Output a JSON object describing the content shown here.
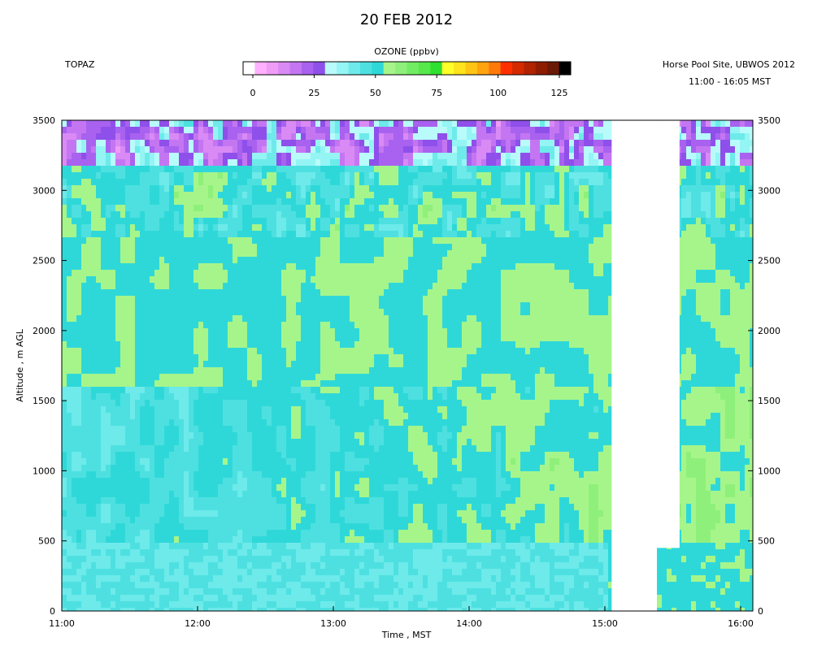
{
  "chart_data": {
    "type": "heatmap",
    "title": "20 FEB 2012",
    "instrument_label": "TOPAZ",
    "site_label": "Horse Pool Site, UBWOS 2012",
    "time_range_label": "11:00 - 16:05 MST",
    "colorbar": {
      "label": "OZONE (ppbv)",
      "range": [
        0,
        125
      ],
      "ticks": [
        0,
        25,
        50,
        75,
        100,
        125
      ],
      "colors": [
        "#ffffff",
        "#ffb0ff",
        "#ef9cf7",
        "#d98af5",
        "#c476f2",
        "#a862ef",
        "#8f4fea",
        "#b9fbfb",
        "#95f4f4",
        "#6eeaea",
        "#4ee0e0",
        "#2fd8d8",
        "#a6f58a",
        "#8ef07a",
        "#72ec62",
        "#57e84a",
        "#2fe02f",
        "#ffff2a",
        "#ffe31c",
        "#ffc515",
        "#ffa40f",
        "#ff7a0a",
        "#ff3000",
        "#d42a00",
        "#b02200",
        "#8e1c00",
        "#6c1a08",
        "#000000"
      ]
    },
    "x": {
      "label": "Time , MST",
      "range": [
        "11:00",
        "16:05"
      ],
      "ticks": [
        "11:00",
        "12:00",
        "13:00",
        "14:00",
        "15:00",
        "16:00"
      ]
    },
    "y": {
      "label": "Altitude , m AGL",
      "range": [
        0,
        3500
      ],
      "ticks": [
        0,
        500,
        1000,
        1500,
        2000,
        2500,
        3000,
        3500
      ]
    },
    "data_gaps": [
      {
        "from": "15:03",
        "to": "15:23",
        "altitude_range": [
          0,
          3500
        ]
      },
      {
        "from": "15:23",
        "to": "15:33",
        "altitude_range": [
          450,
          3500
        ]
      }
    ],
    "profile": [
      {
        "altitude_range": [
          0,
          500
        ],
        "ozone_ppbv": [
          35,
          55
        ],
        "note": "boundary layer, mostly 25-50 band with light-green streaks"
      },
      {
        "altitude_range": [
          500,
          1600
        ],
        "ozone_ppbv": [
          40,
          60
        ],
        "note": "mixed cyan and light green, cyan dominant before 14:00"
      },
      {
        "altitude_range": [
          1600,
          2700
        ],
        "ozone_ppbv": [
          50,
          60
        ],
        "note": "mostly light green"
      },
      {
        "altitude_range": [
          2700,
          3200
        ],
        "ozone_ppbv": [
          35,
          70
        ],
        "note": "cyan and green cells"
      },
      {
        "altitude_range": [
          3200,
          3500
        ],
        "ozone_ppbv": [
          5,
          40
        ],
        "note": "violet/pink low-ozone cells at top"
      }
    ]
  }
}
